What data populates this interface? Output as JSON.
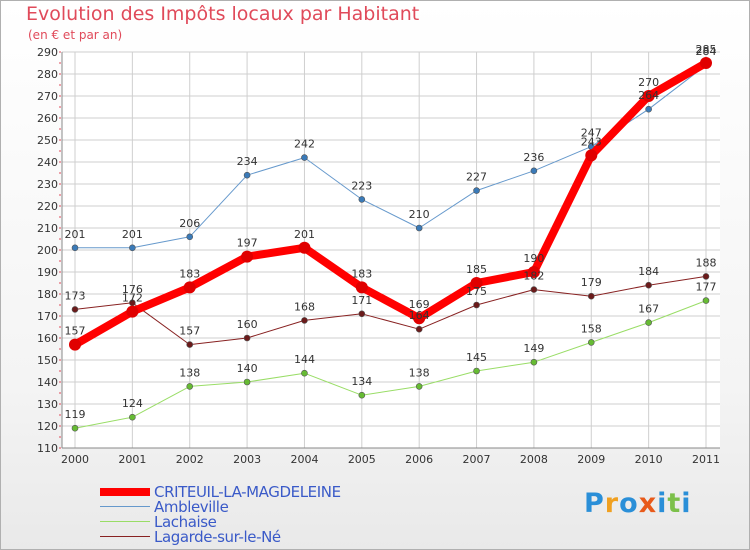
{
  "title": "Evolution des Impôts locaux par Habitant",
  "subtitle": "(en € et par an)",
  "logo": {
    "text": "Proxiti",
    "letters": [
      "P",
      "r",
      "o",
      "x",
      "i",
      "t",
      "i"
    ],
    "colors": [
      "#2a8fd8",
      "#f0a020",
      "#2a8fd8",
      "#e85a1a",
      "#2a8fd8",
      "#7cc04a",
      "#2a8fd8"
    ]
  },
  "chart_data": {
    "type": "line",
    "title": "Evolution des Impôts locaux par Habitant",
    "subtitle": "(en € et par an)",
    "x": [
      "2000",
      "2001",
      "2002",
      "2003",
      "2004",
      "2005",
      "2006",
      "2007",
      "2008",
      "2009",
      "2010",
      "2011"
    ],
    "ylim": [
      110,
      290
    ],
    "yticks": [
      110,
      120,
      130,
      140,
      150,
      160,
      170,
      180,
      190,
      200,
      210,
      220,
      230,
      240,
      250,
      260,
      270,
      280,
      290
    ],
    "grid": true,
    "legend_position": "bottom-left",
    "series": [
      {
        "name": "CRITEUIL-LA-MAGDELEINE",
        "color": "#ff0000",
        "marker_color": "#e00000",
        "width": 8,
        "values": [
          157,
          172,
          183,
          197,
          201,
          183,
          169,
          185,
          190,
          243,
          270,
          285
        ],
        "labels": [
          "157",
          "172",
          "183",
          "197",
          "201",
          "183",
          "169",
          "185",
          "190",
          "243",
          "270",
          "285"
        ]
      },
      {
        "name": "Ambleville",
        "color": "#6699cc",
        "marker_color": "#3a7ab8",
        "width": 1,
        "values": [
          201,
          201,
          206,
          234,
          242,
          223,
          210,
          227,
          236,
          247,
          264,
          284
        ],
        "labels": [
          "201",
          "201",
          "206",
          "234",
          "242",
          "223",
          "210",
          "227",
          "236",
          "247",
          "264",
          "284"
        ]
      },
      {
        "name": "Lachaise",
        "color": "#99dd66",
        "marker_color": "#66bb33",
        "width": 1,
        "values": [
          119,
          124,
          138,
          140,
          144,
          134,
          138,
          145,
          149,
          158,
          167,
          177
        ],
        "labels": [
          "119",
          "124",
          "138",
          "140",
          "144",
          "134",
          "138",
          "145",
          "149",
          "158",
          "167",
          "177"
        ]
      },
      {
        "name": "Lagarde-sur-le-Né",
        "color": "#882222",
        "marker_color": "#6b1b1b",
        "width": 1,
        "values": [
          173,
          176,
          157,
          160,
          168,
          171,
          164,
          175,
          182,
          179,
          184,
          188
        ],
        "labels": [
          "173",
          "176",
          "157",
          "160",
          "168",
          "171",
          "164",
          "175",
          "182",
          "179",
          "184",
          "188"
        ]
      }
    ]
  }
}
